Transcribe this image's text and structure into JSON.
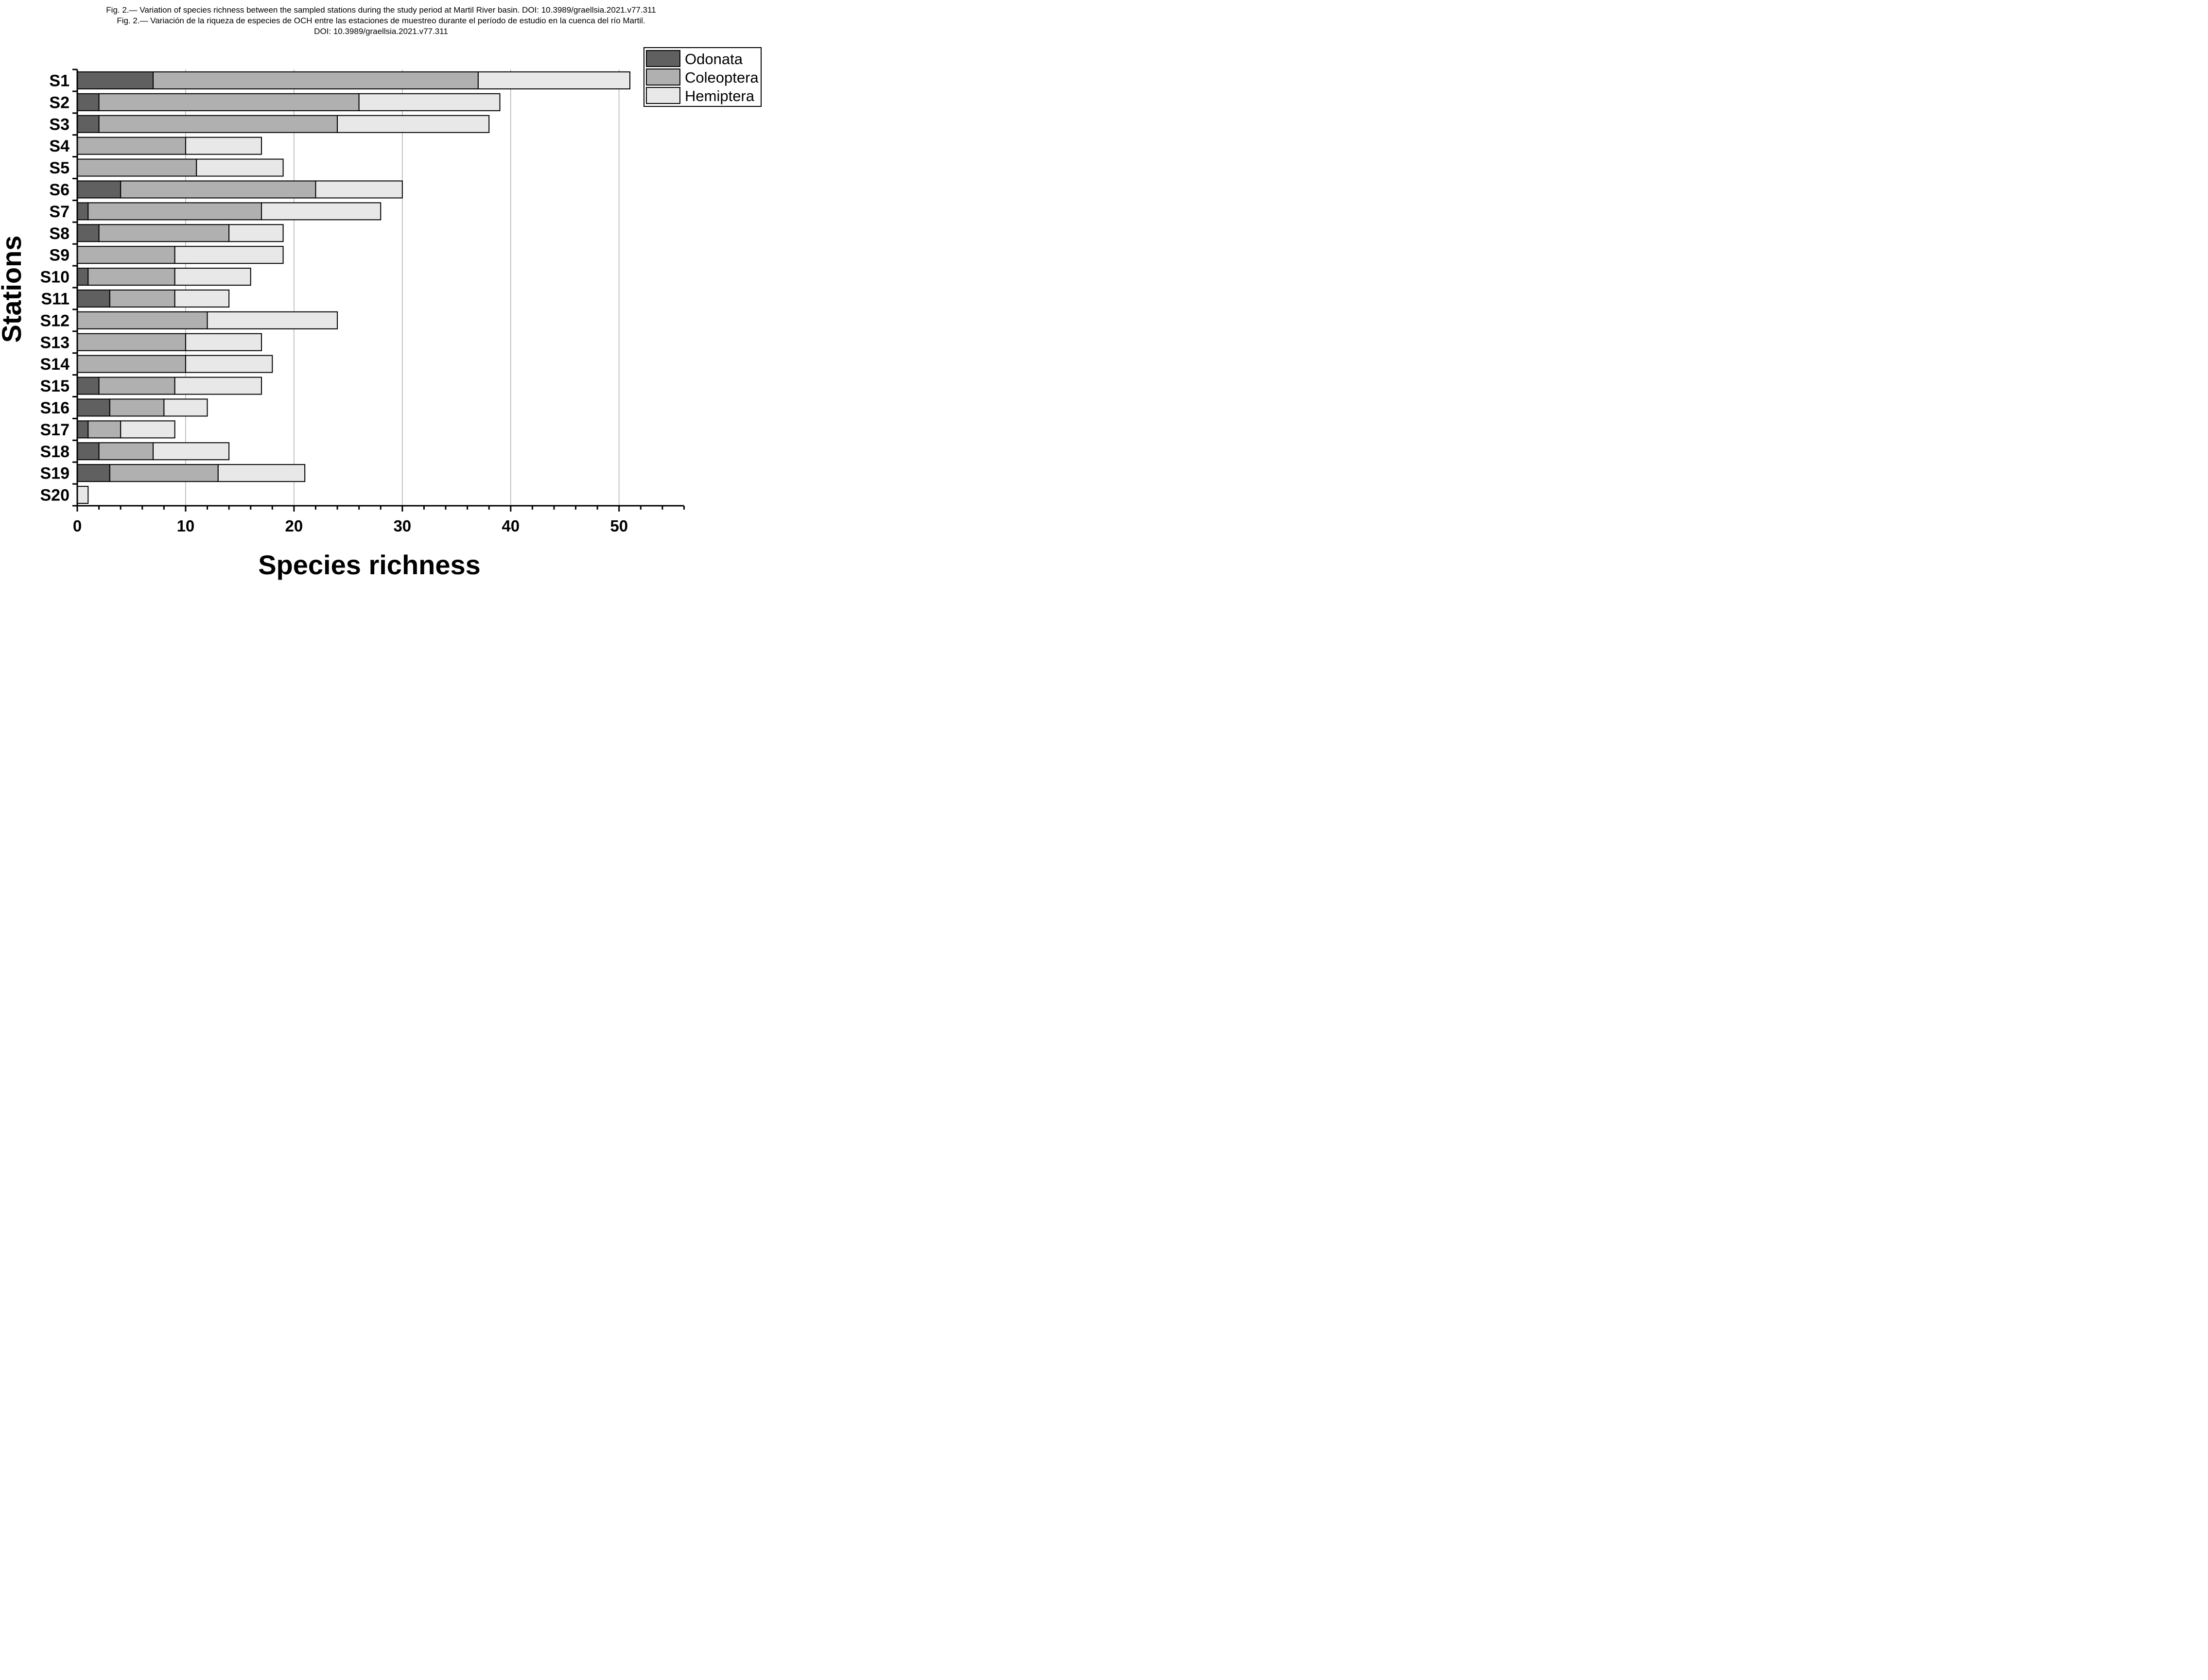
{
  "caption": {
    "line1": "Fig. 2.— Variation of species richness between the sampled stations during the study period at Martil River basin. DOI: 10.3989/graellsia.2021.v77.311",
    "line2": "Fig. 2.— Variación de la riqueza de especies de OCH entre las estaciones de muestreo durante el período de estudio en la cuenca del río Martil.",
    "line3": "DOI: 10.3989/graellsia.2021.v77.311"
  },
  "chart_data": {
    "type": "bar",
    "orientation": "horizontal",
    "stacked": true,
    "categories": [
      "S1",
      "S2",
      "S3",
      "S4",
      "S5",
      "S6",
      "S7",
      "S8",
      "S9",
      "S10",
      "S11",
      "S12",
      "S13",
      "S14",
      "S15",
      "S16",
      "S17",
      "S18",
      "S19",
      "S20"
    ],
    "series": [
      {
        "name": "Odonata",
        "color": "#606060",
        "values": [
          7,
          2,
          2,
          0,
          0,
          4,
          1,
          2,
          0,
          1,
          3,
          0,
          0,
          0,
          2,
          3,
          1,
          2,
          3,
          0
        ]
      },
      {
        "name": "Coleoptera",
        "color": "#b0b0b0",
        "values": [
          30,
          24,
          22,
          10,
          11,
          18,
          16,
          12,
          9,
          8,
          6,
          12,
          10,
          10,
          7,
          5,
          3,
          5,
          10,
          0
        ]
      },
      {
        "name": "Hemiptera",
        "color": "#e8e8e8",
        "values": [
          14,
          13,
          14,
          7,
          8,
          8,
          11,
          5,
          10,
          7,
          5,
          12,
          7,
          8,
          8,
          4,
          5,
          7,
          8,
          1
        ]
      }
    ],
    "xlabel": "Species richness",
    "ylabel": "Stations",
    "xlim": [
      0,
      56
    ],
    "xticks": [
      0,
      10,
      20,
      30,
      40,
      50
    ],
    "grid": "vertical",
    "legend": "top-right"
  }
}
